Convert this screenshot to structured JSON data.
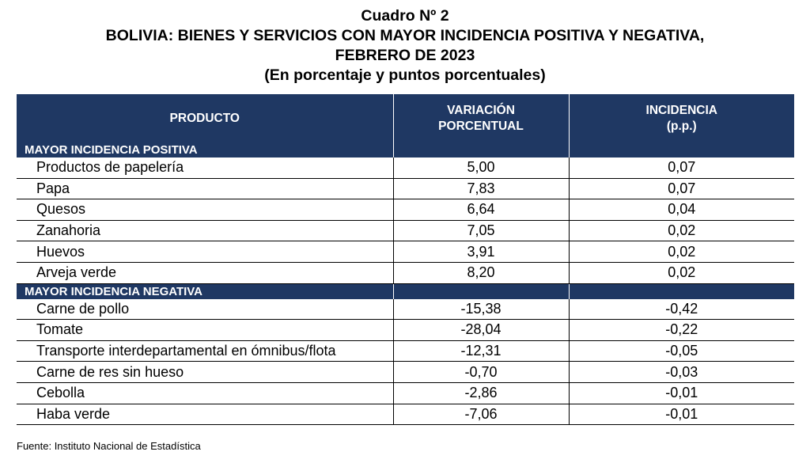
{
  "title_lines": [
    "Cuadro Nº 2",
    "BOLIVIA: BIENES Y SERVICIOS CON MAYOR INCIDENCIA POSITIVA Y NEGATIVA,",
    "FEBRERO DE 2023",
    "(En porcentaje y puntos porcentuales)"
  ],
  "headers": {
    "product": "PRODUCTO",
    "variation_1": "VARIACIÓN",
    "variation_2": "PORCENTUAL",
    "incidence_1": "INCIDENCIA",
    "incidence_2": "(p.p.)"
  },
  "sections": [
    {
      "label": "MAYOR INCIDENCIA POSITIVA",
      "rows": [
        {
          "product": "Productos de papelería",
          "variation": "5,00",
          "incidence": "0,07"
        },
        {
          "product": "Papa",
          "variation": "7,83",
          "incidence": "0,07"
        },
        {
          "product": "Quesos",
          "variation": "6,64",
          "incidence": "0,04"
        },
        {
          "product": "Zanahoria",
          "variation": "7,05",
          "incidence": "0,02"
        },
        {
          "product": "Huevos",
          "variation": "3,91",
          "incidence": "0,02"
        },
        {
          "product": "Arveja verde",
          "variation": "8,20",
          "incidence": "0,02"
        }
      ]
    },
    {
      "label": "MAYOR INCIDENCIA NEGATIVA",
      "rows": [
        {
          "product": "Carne de pollo",
          "variation": "-15,38",
          "incidence": "-0,42"
        },
        {
          "product": "Tomate",
          "variation": "-28,04",
          "incidence": "-0,22"
        },
        {
          "product": "Transporte interdepartamental en ómnibus/flota",
          "variation": "-12,31",
          "incidence": "-0,05"
        },
        {
          "product": "Carne de res sin hueso",
          "variation": "-0,70",
          "incidence": "-0,03"
        },
        {
          "product": "Cebolla",
          "variation": "-2,86",
          "incidence": "-0,01"
        },
        {
          "product": "Haba verde",
          "variation": "-7,06",
          "incidence": "-0,01"
        }
      ]
    }
  ],
  "source": "Fuente: Instituto Nacional de Estadística",
  "colors": {
    "header_bg": "#1f3863",
    "header_text": "#ffffff"
  }
}
